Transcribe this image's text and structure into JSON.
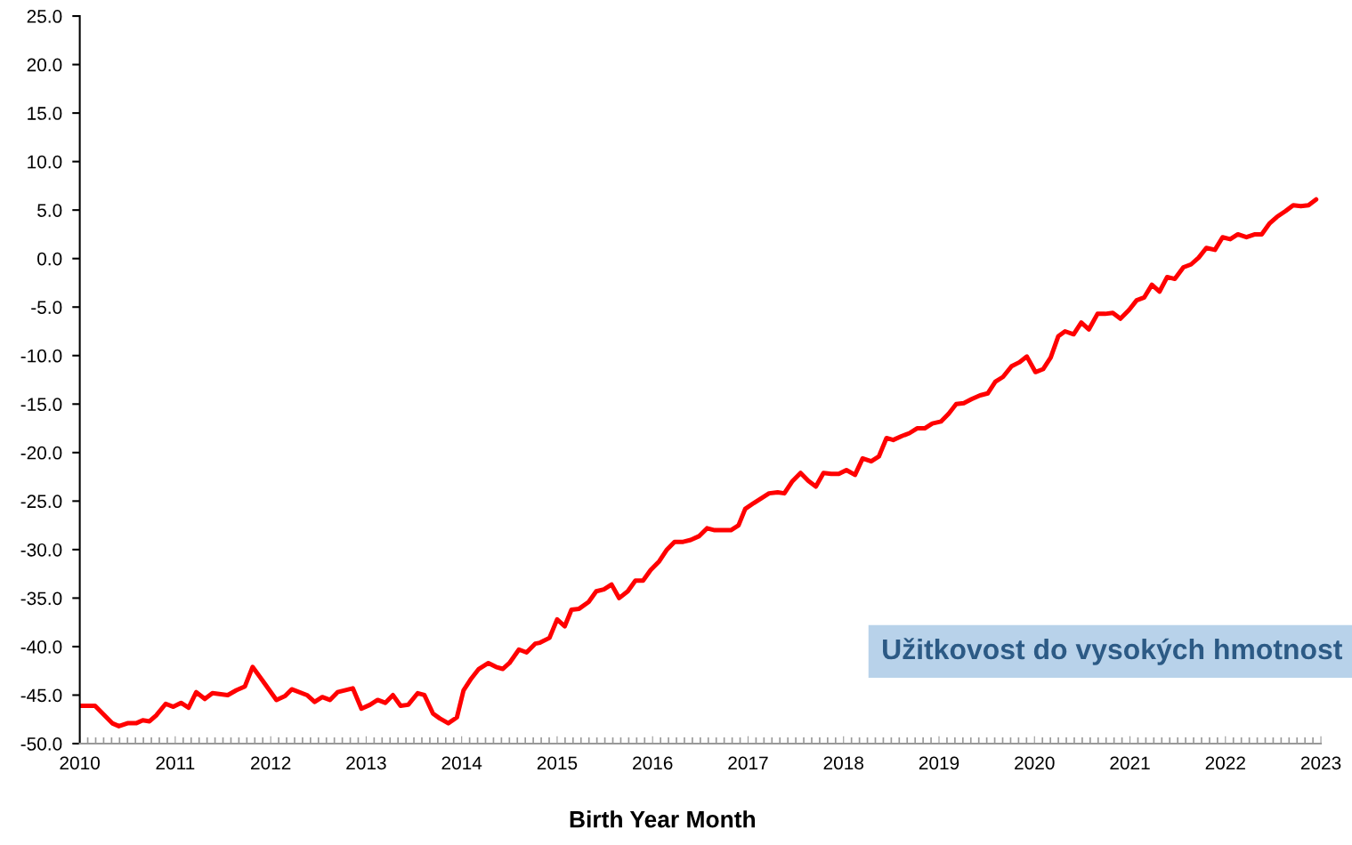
{
  "chart_data": {
    "type": "line",
    "xlabel": "Birth Year Month",
    "x": [
      2010.0,
      2010.16,
      2010.34,
      2010.41,
      2010.5,
      2010.59,
      2010.66,
      2010.73,
      2010.8,
      2010.9,
      2010.98,
      2011.06,
      2011.14,
      2011.22,
      2011.31,
      2011.39,
      2011.55,
      2011.64,
      2011.73,
      2011.81,
      2011.9,
      2012.06,
      2012.15,
      2012.22,
      2012.38,
      2012.46,
      2012.54,
      2012.62,
      2012.7,
      2012.86,
      2012.95,
      2013.04,
      2013.12,
      2013.2,
      2013.28,
      2013.36,
      2013.44,
      2013.54,
      2013.61,
      2013.7,
      2013.77,
      2013.86,
      2013.95,
      2014.02,
      2014.1,
      2014.18,
      2014.28,
      2014.36,
      2014.43,
      2014.5,
      2014.6,
      2014.68,
      2014.77,
      2014.82,
      2014.92,
      2015.0,
      2015.08,
      2015.15,
      2015.23,
      2015.33,
      2015.41,
      2015.49,
      2015.57,
      2015.65,
      2015.74,
      2015.82,
      2015.9,
      2015.98,
      2016.07,
      2016.15,
      2016.23,
      2016.32,
      2016.4,
      2016.49,
      2016.57,
      2016.65,
      2016.73,
      2016.82,
      2016.9,
      2016.97,
      2017.06,
      2017.14,
      2017.22,
      2017.31,
      2017.38,
      2017.46,
      2017.55,
      2017.63,
      2017.71,
      2017.79,
      2017.87,
      2017.95,
      2018.03,
      2018.12,
      2018.2,
      2018.29,
      2018.37,
      2018.45,
      2018.52,
      2018.61,
      2018.69,
      2018.77,
      2018.85,
      2018.93,
      2019.02,
      2019.1,
      2019.18,
      2019.26,
      2019.34,
      2019.43,
      2019.51,
      2019.59,
      2019.67,
      2019.76,
      2019.84,
      2019.92,
      2020.01,
      2020.09,
      2020.17,
      2020.25,
      2020.32,
      2020.41,
      2020.49,
      2020.57,
      2020.66,
      2020.74,
      2020.82,
      2020.9,
      2020.99,
      2021.07,
      2021.15,
      2021.23,
      2021.31,
      2021.39,
      2021.47,
      2021.56,
      2021.64,
      2021.72,
      2021.8,
      2021.89,
      2021.97,
      2022.05,
      2022.13,
      2022.22,
      2022.31,
      2022.38,
      2022.46,
      2022.54,
      2022.63,
      2022.71,
      2022.79,
      2022.87,
      2022.95
    ],
    "series": [
      {
        "color": "#ff0000",
        "values": [
          -46.1,
          -46.1,
          -47.9,
          -48.2,
          -47.9,
          -47.9,
          -47.6,
          -47.7,
          -47.1,
          -45.9,
          -46.2,
          -45.8,
          -46.3,
          -44.7,
          -45.4,
          -44.8,
          -45.0,
          -44.5,
          -44.1,
          -42.1,
          -43.3,
          -45.5,
          -45.1,
          -44.4,
          -45.0,
          -45.7,
          -45.2,
          -45.5,
          -44.7,
          -44.3,
          -46.4,
          -46.0,
          -45.5,
          -45.8,
          -45.0,
          -46.1,
          -46.0,
          -44.8,
          -45.0,
          -46.9,
          -47.4,
          -47.9,
          -47.3,
          -44.5,
          -43.3,
          -42.3,
          -41.7,
          -42.1,
          -42.3,
          -41.7,
          -40.3,
          -40.6,
          -39.7,
          -39.6,
          -39.1,
          -37.2,
          -37.9,
          -36.2,
          -36.1,
          -35.4,
          -34.3,
          -34.1,
          -33.6,
          -35.0,
          -34.3,
          -33.2,
          -33.2,
          -32.1,
          -31.2,
          -30.0,
          -29.2,
          -29.2,
          -29.0,
          -28.6,
          -27.8,
          -28.0,
          -28.0,
          -28.0,
          -27.5,
          -25.8,
          -25.2,
          -24.7,
          -24.2,
          -24.1,
          -24.2,
          -23.0,
          -22.1,
          -22.9,
          -23.5,
          -22.1,
          -22.2,
          -22.2,
          -21.8,
          -22.3,
          -20.6,
          -20.9,
          -20.4,
          -18.5,
          -18.7,
          -18.3,
          -18.0,
          -17.5,
          -17.5,
          -17.0,
          -16.8,
          -16.0,
          -15.0,
          -14.9,
          -14.5,
          -14.1,
          -13.9,
          -12.7,
          -12.2,
          -11.1,
          -10.7,
          -10.1,
          -11.7,
          -11.4,
          -10.2,
          -8.0,
          -7.5,
          -7.8,
          -6.6,
          -7.3,
          -5.7,
          -5.7,
          -5.6,
          -6.2,
          -5.3,
          -4.3,
          -4.0,
          -2.7,
          -3.4,
          -1.9,
          -2.1,
          -0.9,
          -0.6,
          0.1,
          1.1,
          0.9,
          2.2,
          2.0,
          2.5,
          2.2,
          2.5,
          2.5,
          3.6,
          4.3,
          4.9,
          5.5,
          5.4,
          5.5,
          6.1
        ]
      }
    ],
    "xlim": [
      2010,
      2023
    ],
    "xticks": [
      2010,
      2011,
      2012,
      2013,
      2014,
      2015,
      2016,
      2017,
      2018,
      2019,
      2020,
      2021,
      2022,
      2023
    ],
    "ylim": [
      -50,
      25
    ],
    "yticks": [
      {
        "value": -50,
        "label": "-50.0"
      },
      {
        "value": -45,
        "label": "-45.0"
      },
      {
        "value": -40,
        "label": "-40.0"
      },
      {
        "value": -35,
        "label": "-35.0"
      },
      {
        "value": -30,
        "label": "-30.0"
      },
      {
        "value": -25,
        "label": "-25.0"
      },
      {
        "value": -20,
        "label": "-20.0"
      },
      {
        "value": -15,
        "label": "-15.0"
      },
      {
        "value": -10,
        "label": "-10.0"
      },
      {
        "value": -5,
        "label": "-5.0"
      },
      {
        "value": 0,
        "label": "0.0"
      },
      {
        "value": 5,
        "label": "5.0"
      },
      {
        "value": 10,
        "label": "10.0"
      },
      {
        "value": 15,
        "label": "15.0"
      },
      {
        "value": 20,
        "label": "20.0"
      },
      {
        "value": 25,
        "label": "25.0"
      }
    ],
    "annotations": [
      "Užitkovost do vysokých hmotnost"
    ],
    "grid": false,
    "marker": "none",
    "line_style": "solid"
  }
}
